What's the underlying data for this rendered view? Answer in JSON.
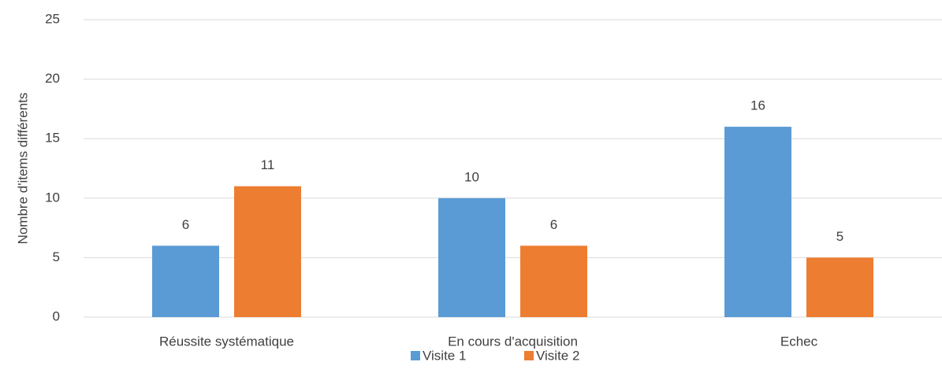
{
  "chart_data": {
    "type": "bar",
    "y_label": "Nombre d'items différents",
    "categories": [
      "Réussite systématique",
      "En cours d'acquisition",
      "Echec"
    ],
    "series": [
      {
        "name": "Visite 1",
        "color": "#5b9bd5",
        "values": [
          6,
          10,
          16
        ]
      },
      {
        "name": "Visite 2",
        "color": "#ed7d31",
        "values": [
          11,
          6,
          5
        ]
      }
    ],
    "ylim": [
      0,
      25
    ],
    "yticks": [
      0,
      5,
      10,
      15,
      20,
      25
    ],
    "grid": true,
    "legend": "bottom",
    "data_labels": true
  }
}
